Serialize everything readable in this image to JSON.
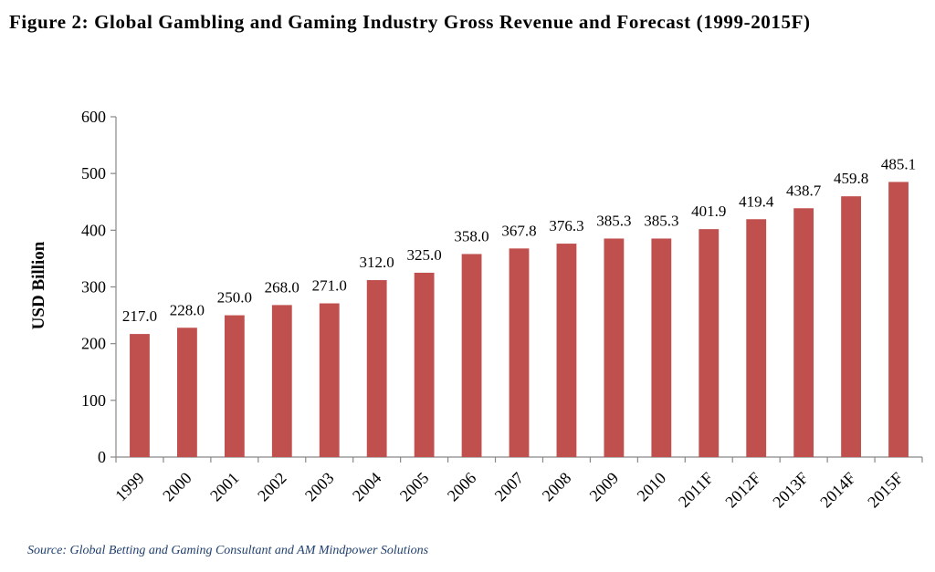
{
  "figure": {
    "title": "Figure 2: Global Gambling and Gaming Industry Gross Revenue and Forecast (1999-2015F)",
    "source": "Source: Global Betting and Gaming Consultant and AM Mindpower Solutions"
  },
  "chart_data": {
    "type": "bar",
    "title": "Figure 2: Global Gambling and Gaming Industry Gross Revenue and Forecast (1999-2015F)",
    "xlabel": "",
    "ylabel": "USD Billion",
    "ylim": [
      0,
      600
    ],
    "yticks": [
      0,
      100,
      200,
      300,
      400,
      500,
      600
    ],
    "categories": [
      "1999",
      "2000",
      "2001",
      "2002",
      "2003",
      "2004",
      "2005",
      "2006",
      "2007",
      "2008",
      "2009",
      "2010",
      "2011F",
      "2012F",
      "2013F",
      "2014F",
      "2015F"
    ],
    "values": [
      217.0,
      228.0,
      250.0,
      268.0,
      271.0,
      312.0,
      325.0,
      358.0,
      367.8,
      376.3,
      385.3,
      385.3,
      401.9,
      419.4,
      438.7,
      459.8,
      485.1
    ],
    "value_labels": [
      "217.0",
      "228.0",
      "250.0",
      "268.0",
      "271.0",
      "312.0",
      "325.0",
      "358.0",
      "367.8",
      "376.3",
      "385.3",
      "385.3",
      "401.9",
      "419.4",
      "438.7",
      "459.8",
      "485.1"
    ],
    "bar_color": "#c0504d",
    "grid": false,
    "legend": "none"
  }
}
